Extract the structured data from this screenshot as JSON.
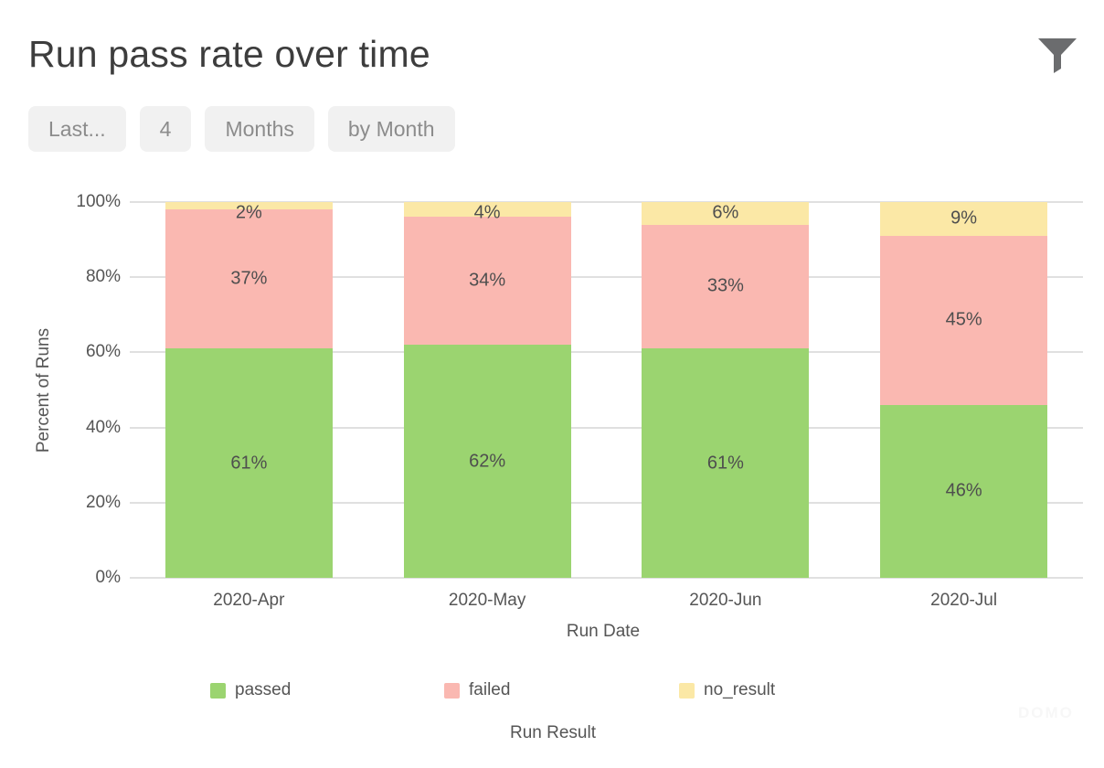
{
  "header": {
    "title": "Run pass rate over time",
    "filter_icon": "funnel-icon"
  },
  "filters": [
    {
      "label": "Last..."
    },
    {
      "label": "4"
    },
    {
      "label": "Months"
    },
    {
      "label": "by Month"
    }
  ],
  "chart_data": {
    "type": "bar",
    "subtype": "stacked-100-percent",
    "title": "Run pass rate over time",
    "categories": [
      "2020-Apr",
      "2020-May",
      "2020-Jun",
      "2020-Jul"
    ],
    "series": [
      {
        "name": "passed",
        "color": "#9BD470",
        "values": [
          61,
          62,
          61,
          46
        ]
      },
      {
        "name": "failed",
        "color": "#FAB8B1",
        "values": [
          37,
          34,
          33,
          45
        ]
      },
      {
        "name": "no_result",
        "color": "#FBE8A6",
        "values": [
          2,
          4,
          6,
          9
        ]
      }
    ],
    "value_suffix": "%",
    "xlabel": "Run Date",
    "ylabel": "Percent of Runs",
    "legend_title": "Run Result",
    "y_ticks": [
      "0%",
      "20%",
      "40%",
      "60%",
      "80%",
      "100%"
    ],
    "ylim": [
      0,
      100
    ],
    "grid": true,
    "legend_position": "bottom"
  },
  "watermark": {
    "text": "DOMO"
  },
  "colors": {
    "grid": "#E0E0E0",
    "axis_text": "#555555",
    "bar_label_text": "#4E4E4E",
    "title_text": "#3D3D3D",
    "pill_bg": "#F1F1F1",
    "pill_text": "#8C8C8C",
    "icon": "#6B6C6E"
  }
}
